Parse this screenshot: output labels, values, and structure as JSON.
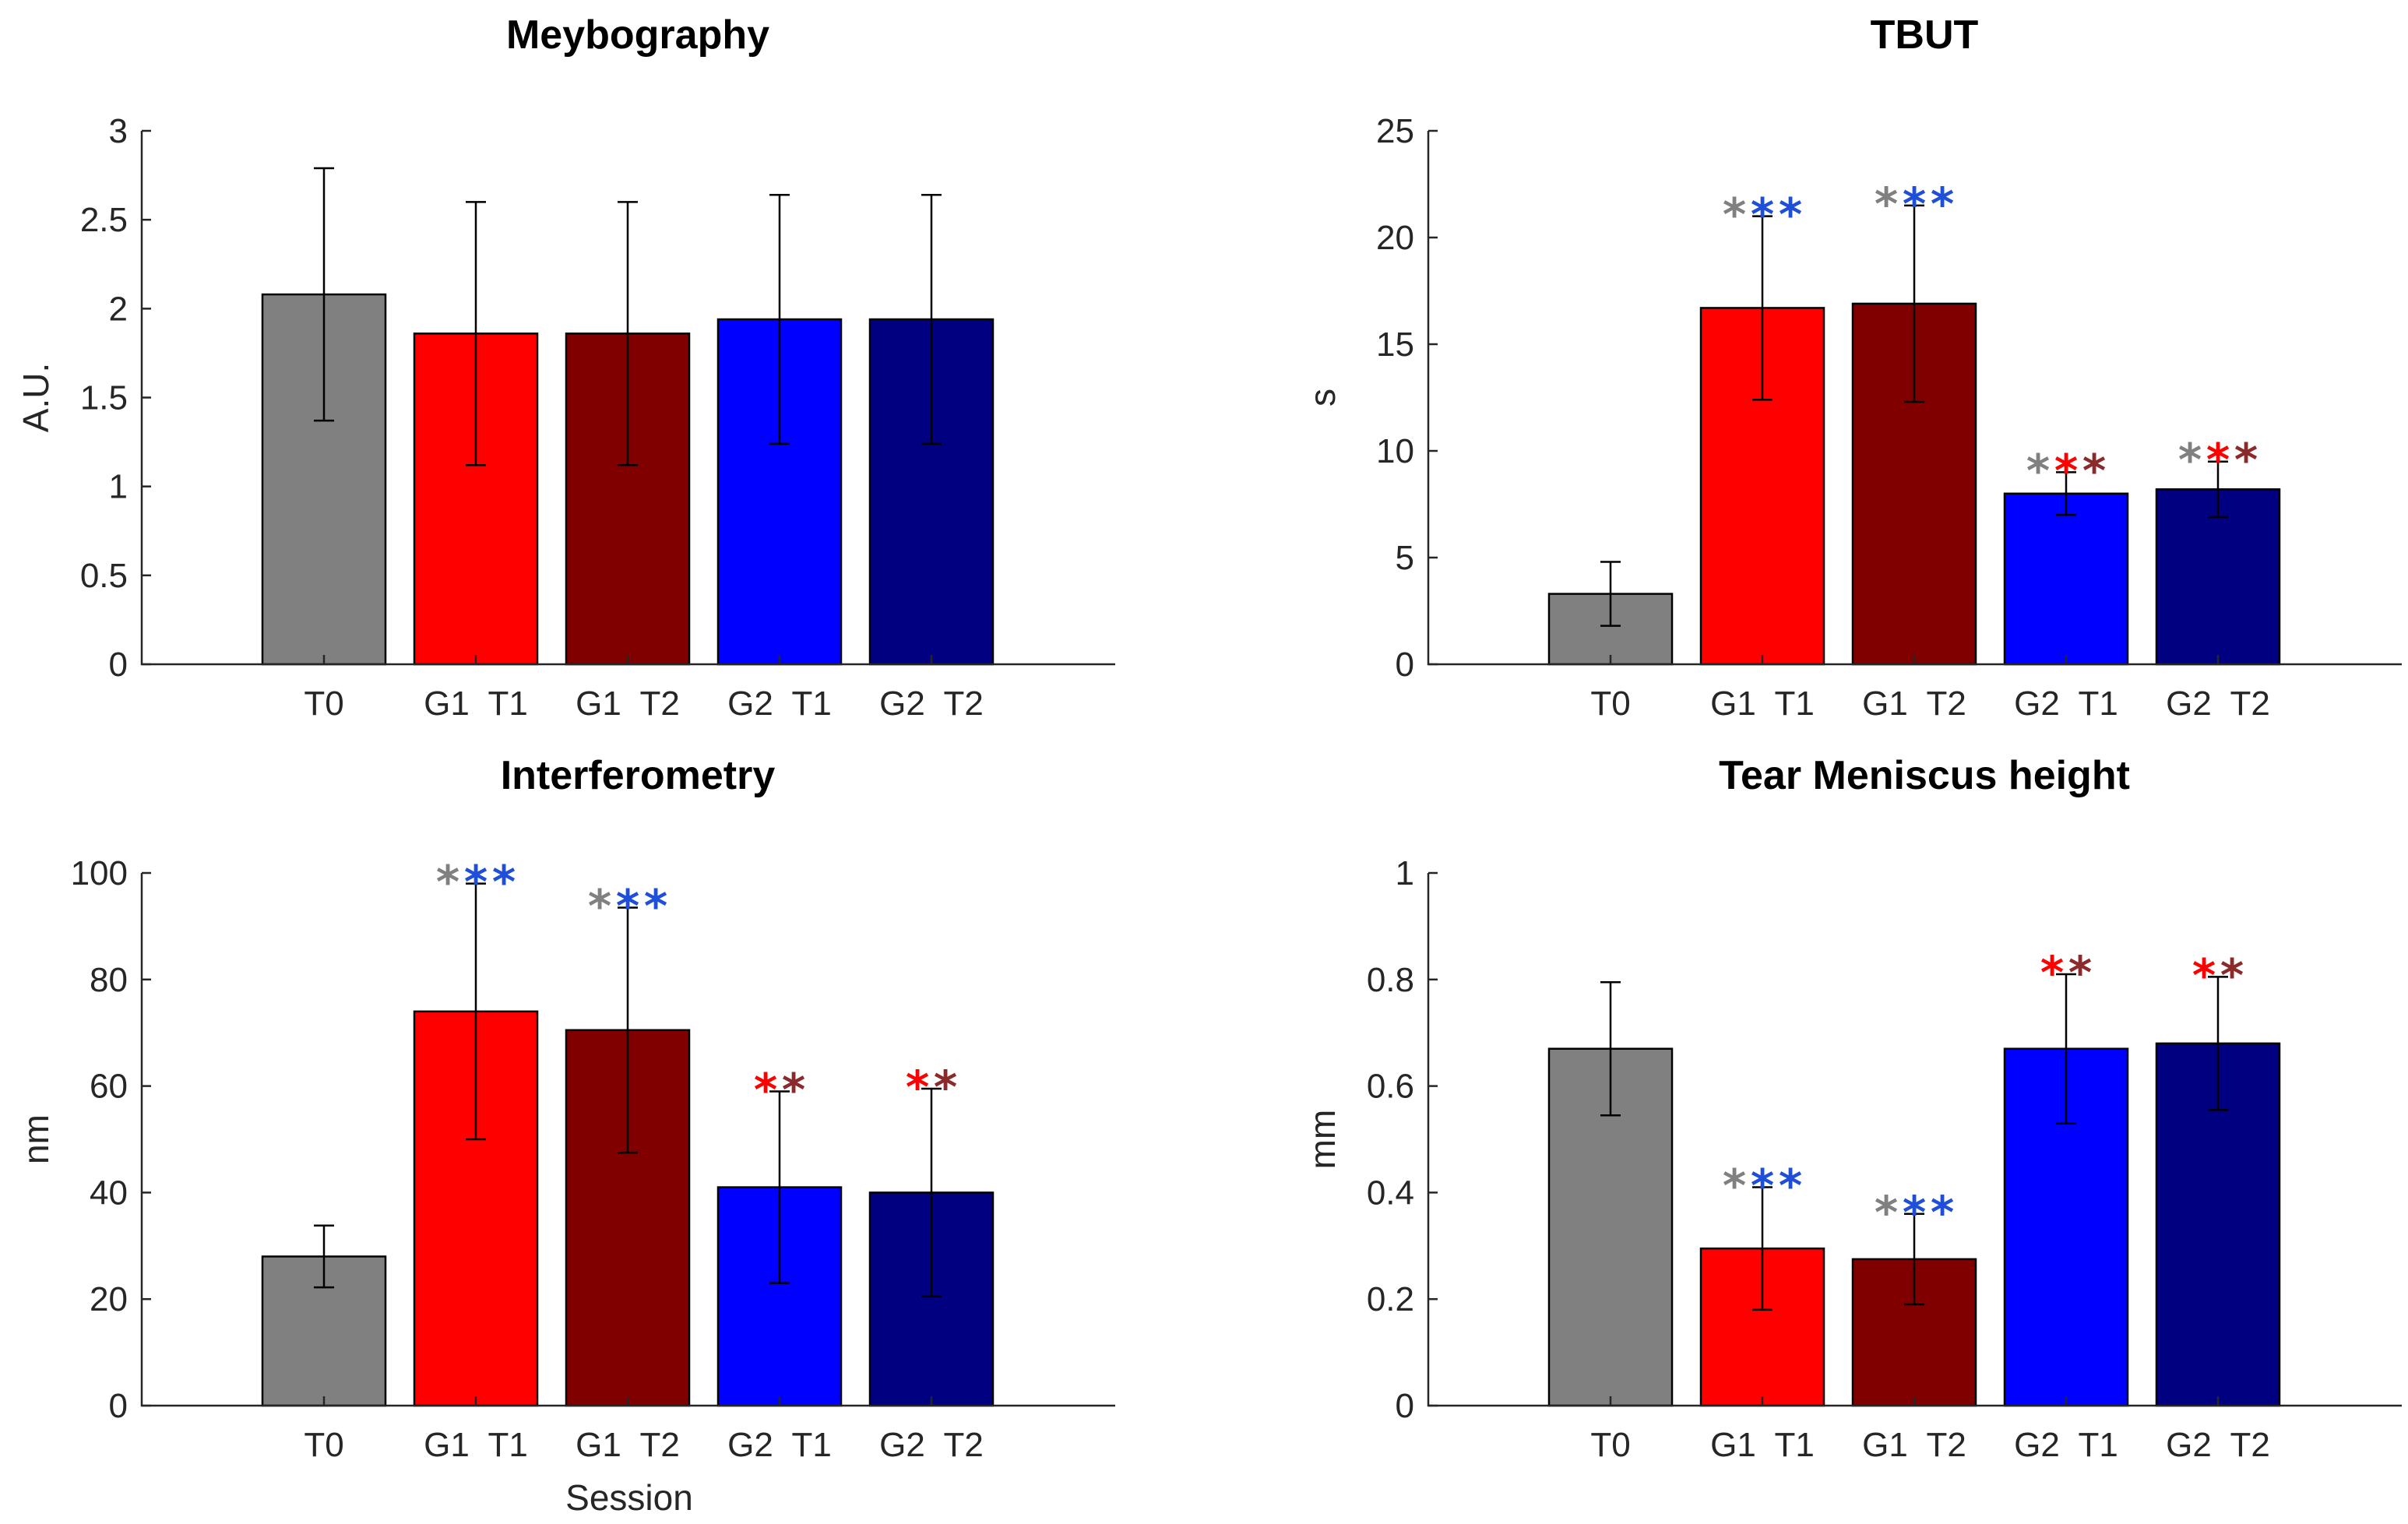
{
  "colors": {
    "T0": "#808080",
    "G1_T1": "#ff0000",
    "G1_T2": "#800000",
    "G2_T1": "#0000ff",
    "G2_T2": "#000080",
    "star_gray": "#808080",
    "star_blue": "#1f4fd8",
    "star_red": "#ff0000",
    "star_darkred": "#8b2a2a"
  },
  "chart_data": [
    {
      "type": "bar",
      "title": "Meybography",
      "xlabel": "",
      "ylabel": "A.U.",
      "categories": [
        "T0",
        "G1  T1",
        "G1  T2",
        "G2  T1",
        "G2  T2"
      ],
      "values": [
        2.08,
        1.86,
        1.86,
        1.94,
        1.94
      ],
      "errors": [
        0.71,
        0.74,
        0.74,
        0.7,
        0.7
      ],
      "ylim": [
        0,
        3
      ],
      "yticks": [
        0,
        0.5,
        1,
        1.5,
        2,
        2.5,
        3
      ],
      "ytick_labels": [
        "0",
        "0.5",
        "1",
        "1.5",
        "2",
        "2.5",
        "3"
      ],
      "significance": [
        [],
        [],
        [],
        [],
        []
      ]
    },
    {
      "type": "bar",
      "title": "TBUT",
      "xlabel": "",
      "ylabel": "s",
      "categories": [
        "T0",
        "G1  T1",
        "G1  T2",
        "G2  T1",
        "G2  T2"
      ],
      "values": [
        3.3,
        16.7,
        16.9,
        8.0,
        8.2
      ],
      "errors": [
        1.5,
        4.3,
        4.6,
        1.0,
        1.3
      ],
      "ylim": [
        0,
        25
      ],
      "yticks": [
        0,
        5,
        10,
        15,
        20,
        25
      ],
      "ytick_labels": [
        "0",
        "5",
        "10",
        "15",
        "20",
        "25"
      ],
      "significance": [
        [],
        [
          "gray",
          "blue",
          "blue"
        ],
        [
          "gray",
          "blue",
          "blue"
        ],
        [
          "gray",
          "red",
          "darkred"
        ],
        [
          "gray",
          "red",
          "darkred"
        ]
      ]
    },
    {
      "type": "bar",
      "title": "Interferometry",
      "xlabel": "Session",
      "ylabel": "nm",
      "categories": [
        "T0",
        "G1  T1",
        "G1  T2",
        "G2  T1",
        "G2  T2"
      ],
      "values": [
        28,
        74,
        70.5,
        41,
        40
      ],
      "errors": [
        5.8,
        24,
        23,
        18,
        19.5
      ],
      "ylim": [
        0,
        100
      ],
      "yticks": [
        0,
        20,
        40,
        60,
        80,
        100
      ],
      "ytick_labels": [
        "0",
        "20",
        "40",
        "60",
        "80",
        "100"
      ],
      "significance": [
        [],
        [
          "gray",
          "blue",
          "blue"
        ],
        [
          "gray",
          "blue",
          "blue"
        ],
        [
          "red",
          "darkred"
        ],
        [
          "red",
          "darkred"
        ]
      ]
    },
    {
      "type": "bar",
      "title": "Tear Meniscus height",
      "xlabel": "",
      "ylabel": "mm",
      "categories": [
        "T0",
        "G1  T1",
        "G1  T2",
        "G2  T1",
        "G2  T2"
      ],
      "values": [
        0.67,
        0.295,
        0.275,
        0.67,
        0.68
      ],
      "errors": [
        0.125,
        0.115,
        0.085,
        0.14,
        0.125
      ],
      "ylim": [
        0,
        1
      ],
      "yticks": [
        0,
        0.2,
        0.4,
        0.6,
        0.8,
        1
      ],
      "ytick_labels": [
        "0",
        "0.2",
        "0.4",
        "0.6",
        "0.8",
        "1"
      ],
      "significance": [
        [],
        [
          "gray",
          "blue",
          "blue"
        ],
        [
          "gray",
          "blue",
          "blue"
        ],
        [
          "red",
          "darkred"
        ],
        [
          "red",
          "darkred"
        ]
      ]
    }
  ]
}
